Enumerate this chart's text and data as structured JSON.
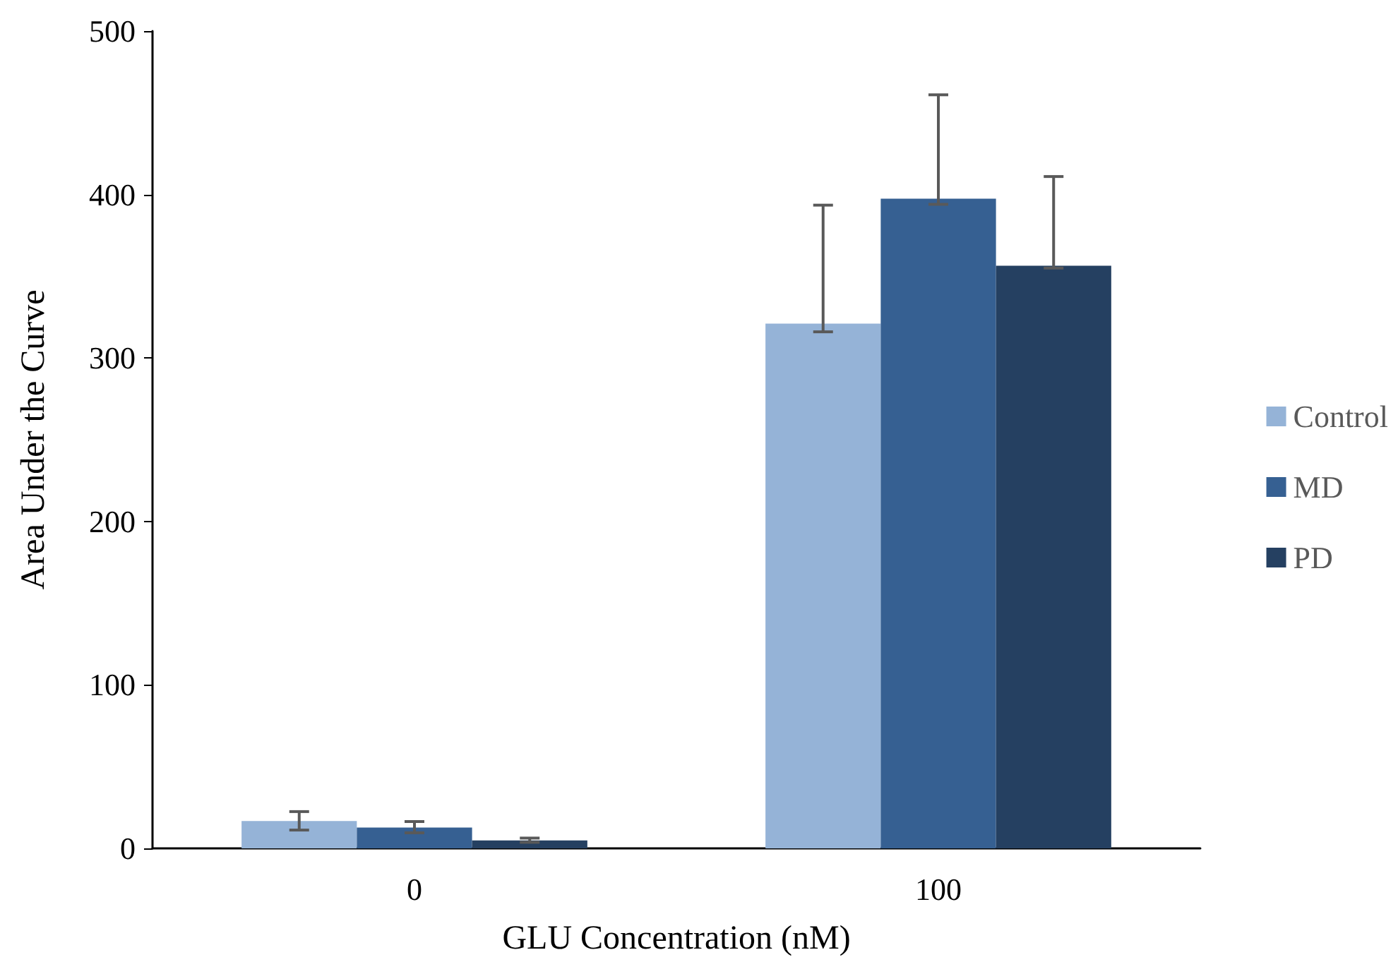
{
  "chart_data": {
    "type": "bar",
    "xlabel": "GLU Concentration (nM)",
    "ylabel": "Area Under the Curve",
    "categories": [
      "0",
      "100"
    ],
    "series": [
      {
        "name": "Control",
        "color": "#95b3d7",
        "values": [
          16.7,
          321
        ],
        "errors": [
          [
            11.2,
            22.5
          ],
          [
            316,
            393.5
          ]
        ]
      },
      {
        "name": "MD",
        "color": "#366092",
        "values": [
          12.7,
          397.5
        ],
        "errors": [
          [
            9.5,
            16.4
          ],
          [
            394,
            461
          ]
        ]
      },
      {
        "name": "PD",
        "color": "#254061",
        "values": [
          4.9,
          356.4
        ],
        "errors": [
          [
            3.7,
            6.3
          ],
          [
            355,
            411
          ]
        ]
      }
    ],
    "ylim": [
      0,
      500
    ],
    "yticks": [
      0,
      100,
      200,
      300,
      400,
      500
    ],
    "grid": false,
    "legend": "right"
  }
}
